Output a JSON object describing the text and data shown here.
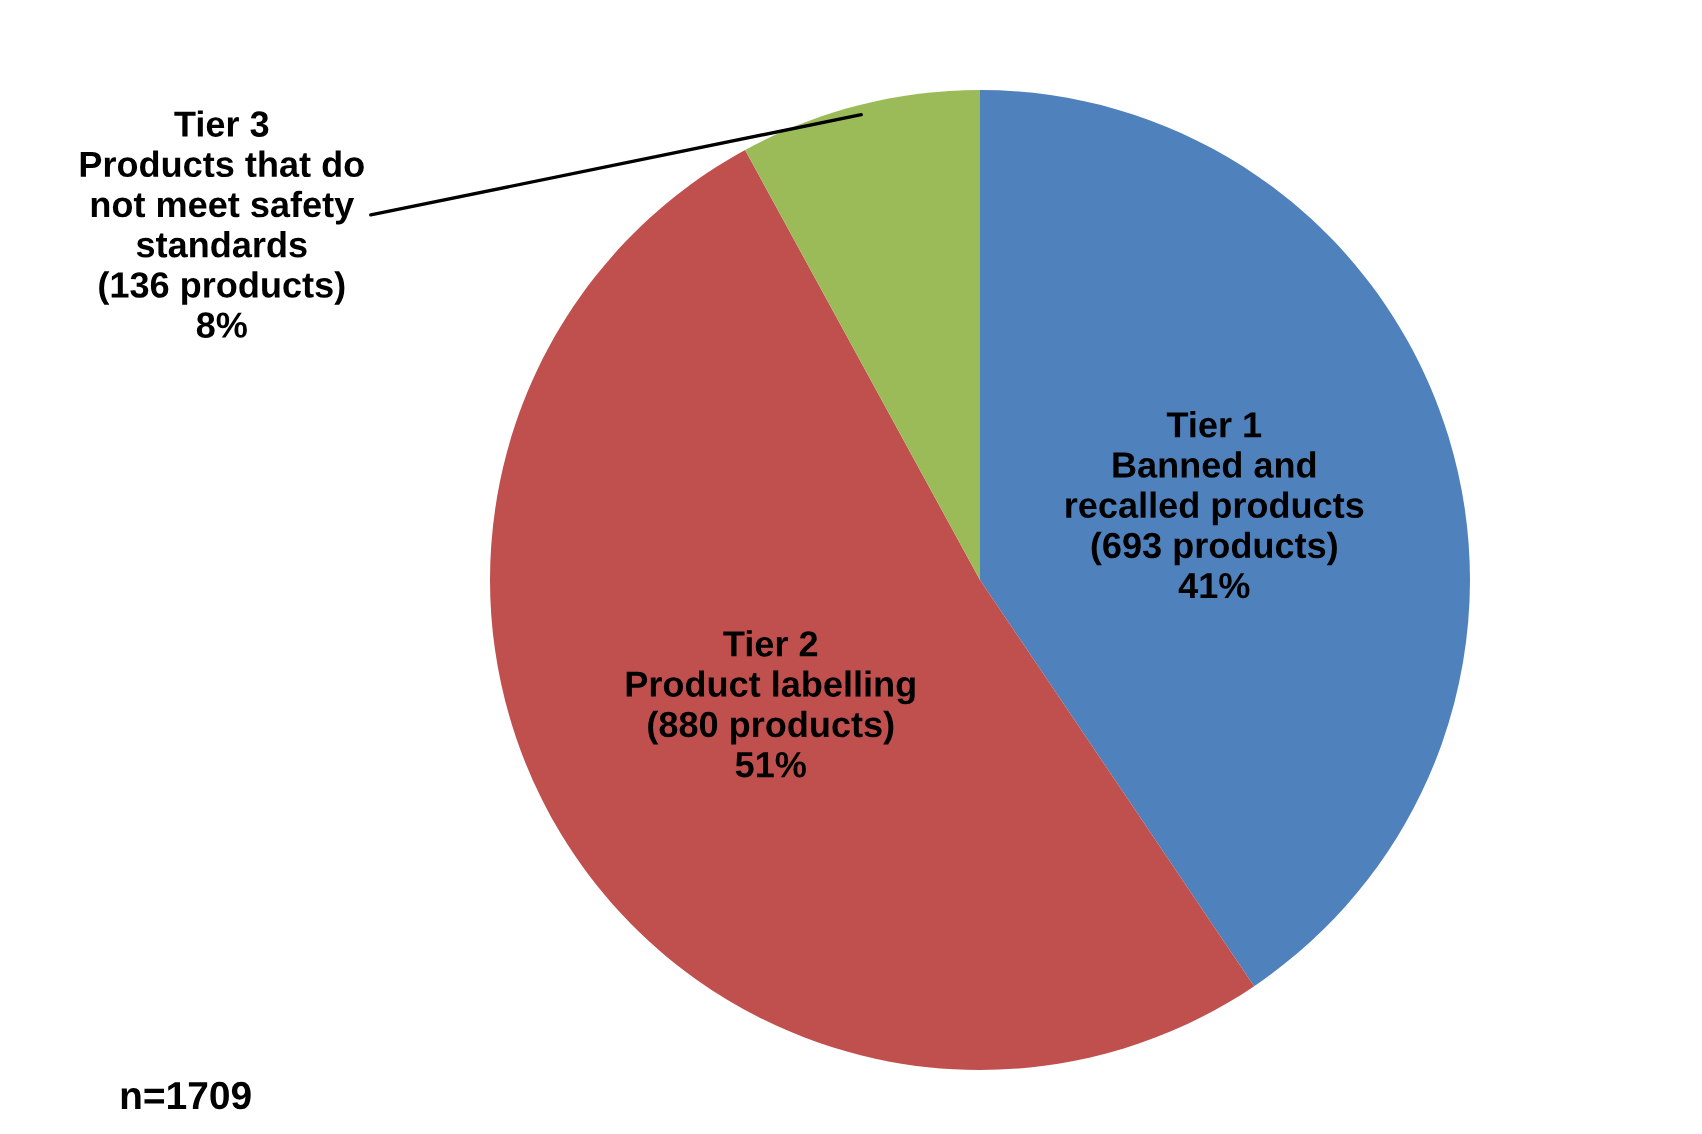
{
  "chart_data": {
    "type": "pie",
    "categories": [
      "Tier 1\nBanned and\nrecalled products",
      "Tier 2\nProduct labelling",
      "Tier 3\nProducts that do\nnot meet safety\nstandards"
    ],
    "values": [
      693,
      880,
      136
    ],
    "colors": [
      "#4f81bd",
      "#c0504d",
      "#9bbb59"
    ],
    "value_labels": [
      "(693 products)\n41%",
      "(880 products)\n51%",
      "(136 products)\n8%"
    ],
    "annotations": [
      "n=1709"
    ]
  }
}
